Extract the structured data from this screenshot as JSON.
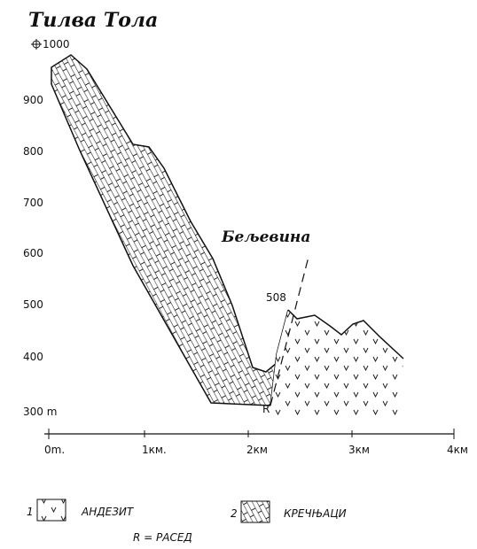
{
  "title": "Тилва Тола",
  "elevation_labels": [
    "1000",
    "900",
    "800",
    "700",
    "600",
    "500",
    "400",
    "300 m"
  ],
  "distance_labels": [
    "0m.",
    "1км.",
    "2км",
    "3км",
    "4км"
  ],
  "locality": "Бељевина",
  "peak_label": "508",
  "fault_label": "R",
  "legend": {
    "items": [
      {
        "number": "1",
        "label": "АНДЕЗИТ"
      },
      {
        "number": "2",
        "label": "КРЕЧЊАЦИ"
      }
    ],
    "note": "R = РАСЕД"
  }
}
